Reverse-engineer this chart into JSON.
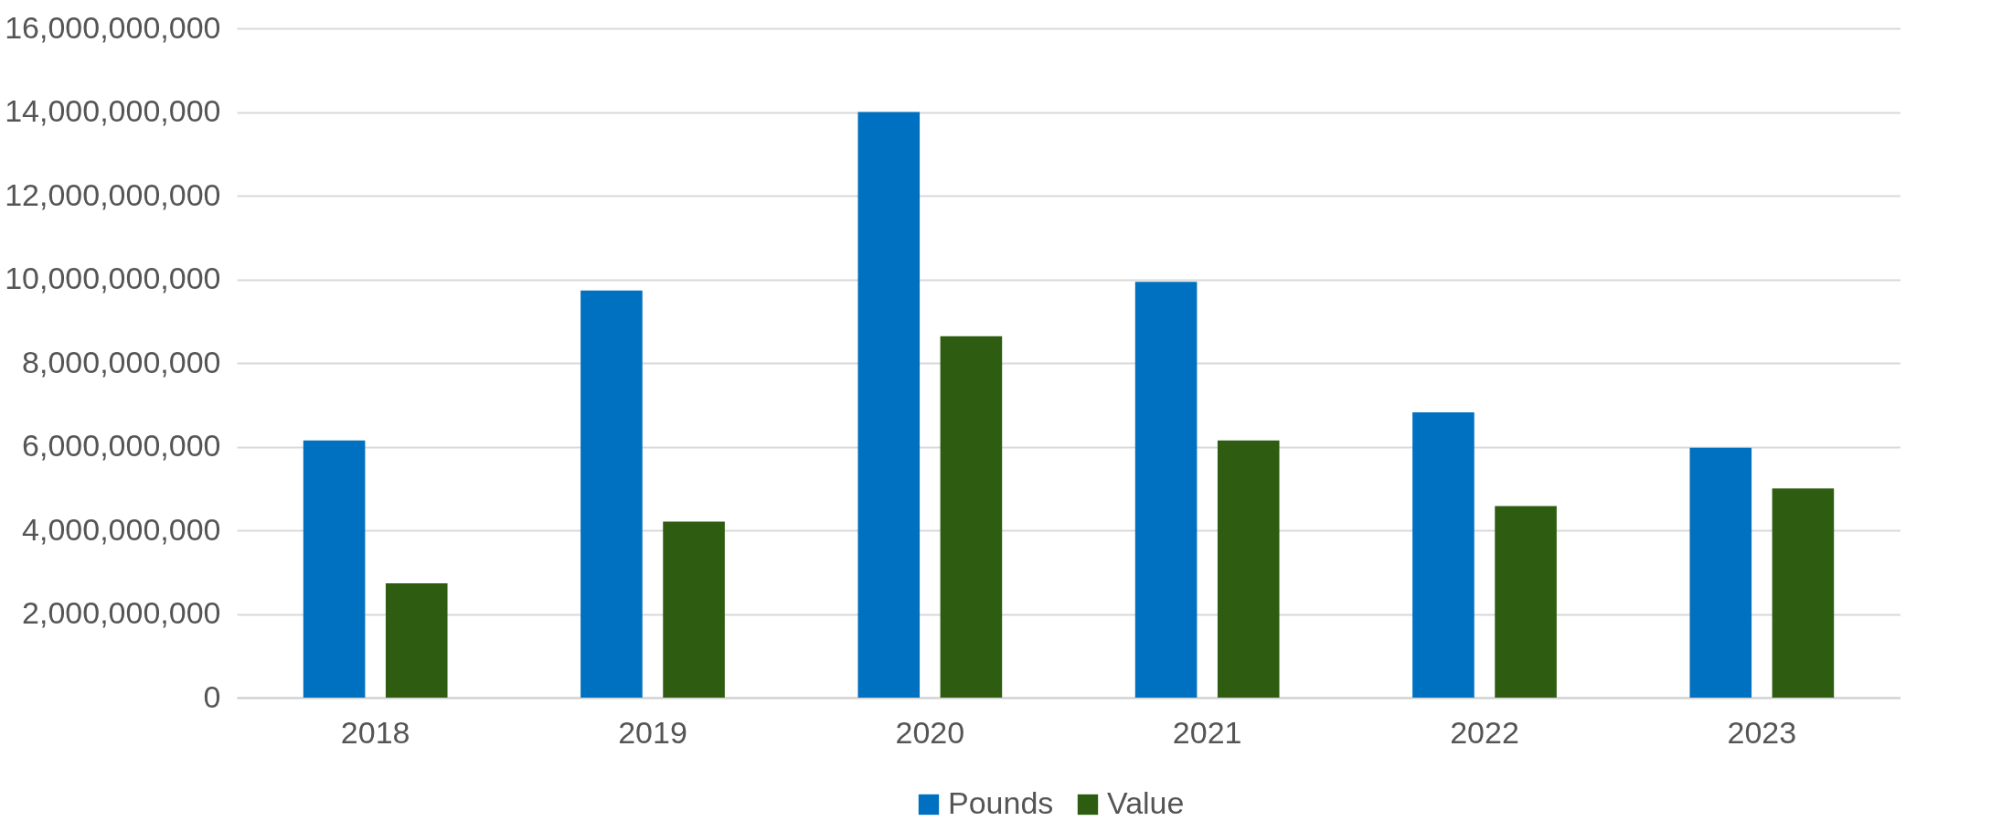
{
  "chart_data": {
    "type": "bar",
    "categories": [
      "2018",
      "2019",
      "2020",
      "2021",
      "2022",
      "2023"
    ],
    "series": [
      {
        "name": "Pounds",
        "color": "#0070c0",
        "values": [
          6150000000,
          9730000000,
          14000000000,
          9940000000,
          6820000000,
          5970000000
        ]
      },
      {
        "name": "Value",
        "color": "#2e5d11",
        "values": [
          2730000000,
          4210000000,
          8640000000,
          6150000000,
          4580000000,
          5000000000
        ]
      }
    ],
    "ylim": [
      0,
      16000000000
    ],
    "yticks": [
      0,
      {
        "value": 2000000000,
        "label": "2,000,000,000"
      },
      {
        "value": 4000000000,
        "label": "4,000,000,000"
      },
      {
        "value": 6000000000,
        "label": "6,000,000,000"
      },
      {
        "value": 8000000000,
        "label": "8,000,000,000"
      },
      {
        "value": 10000000000,
        "label": "10,000,000,000"
      },
      {
        "value": 12000000000,
        "label": "12,000,000,000"
      },
      {
        "value": 14000000000,
        "label": "14,000,000,000"
      },
      {
        "value": 16000000000,
        "label": "16,000,000,000"
      }
    ],
    "grid": "y",
    "legend": "bottom"
  }
}
